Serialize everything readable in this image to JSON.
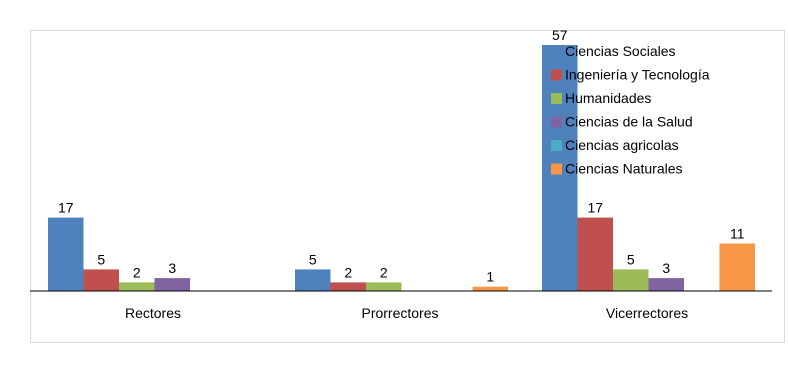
{
  "chart_data": {
    "type": "bar",
    "title": "",
    "xlabel": "",
    "ylabel": "",
    "ylim": [
      0,
      57
    ],
    "grid": false,
    "legend_position": "top-right",
    "categories": [
      "Rectores",
      "Prorrectores",
      "Vicerrectores"
    ],
    "series": [
      {
        "name": "Ciencias Sociales",
        "color": "#4F81BD",
        "values": [
          17,
          5,
          57
        ]
      },
      {
        "name": "Ingeniería y Tecnología",
        "color": "#C0504D",
        "values": [
          5,
          2,
          17
        ]
      },
      {
        "name": "Humanidades",
        "color": "#9BBB59",
        "values": [
          2,
          2,
          5
        ]
      },
      {
        "name": "Ciencias de la Salud",
        "color": "#8064A2",
        "values": [
          3,
          null,
          3
        ]
      },
      {
        "name": "Ciencias agricolas",
        "color": "#4BACC6",
        "values": [
          null,
          null,
          null
        ]
      },
      {
        "name": "Ciencias Naturales",
        "color": "#F79646",
        "values": [
          null,
          1,
          11
        ]
      }
    ]
  }
}
